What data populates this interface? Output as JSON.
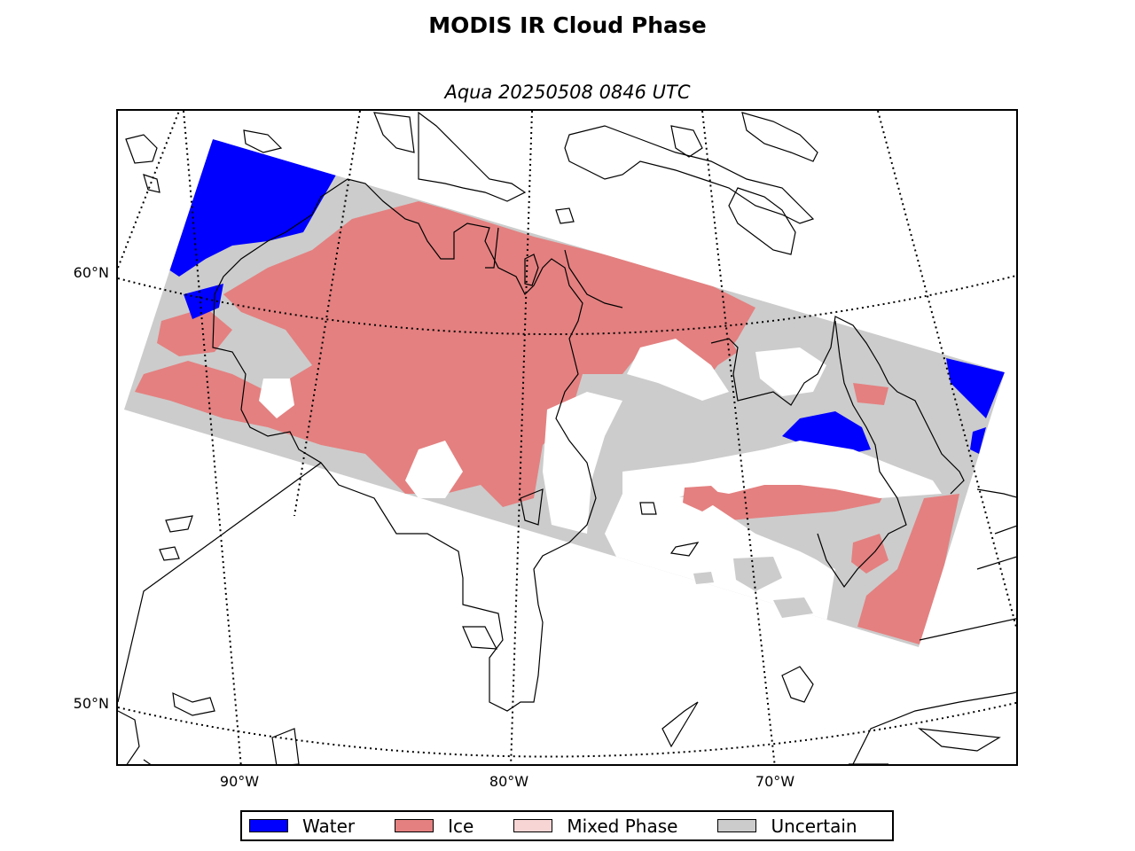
{
  "title": "MODIS IR Cloud Phase",
  "subtitle": "Aqua 20250508 0846 UTC",
  "lat_labels": [
    {
      "id": "lat-60",
      "label": "60°N"
    },
    {
      "id": "lat-50",
      "label": "50°N"
    }
  ],
  "lon_labels": [
    {
      "id": "lon-90",
      "label": "90°W"
    },
    {
      "id": "lon-80",
      "label": "80°W"
    },
    {
      "id": "lon-70",
      "label": "70°W"
    }
  ],
  "legend": [
    {
      "name": "water",
      "label": "Water",
      "color": "#0000ff"
    },
    {
      "name": "ice",
      "label": "Ice",
      "color": "#e48080"
    },
    {
      "name": "mixed-phase",
      "label": "Mixed Phase",
      "color": "#f7d5d5"
    },
    {
      "name": "uncertain",
      "label": "Uncertain",
      "color": "#cccccc"
    }
  ],
  "colors": {
    "water": "#0000ff",
    "ice": "#e48080",
    "mixed": "#f7d5d5",
    "uncertain": "#cccccc",
    "coast": "#000000",
    "background": "#ffffff"
  }
}
